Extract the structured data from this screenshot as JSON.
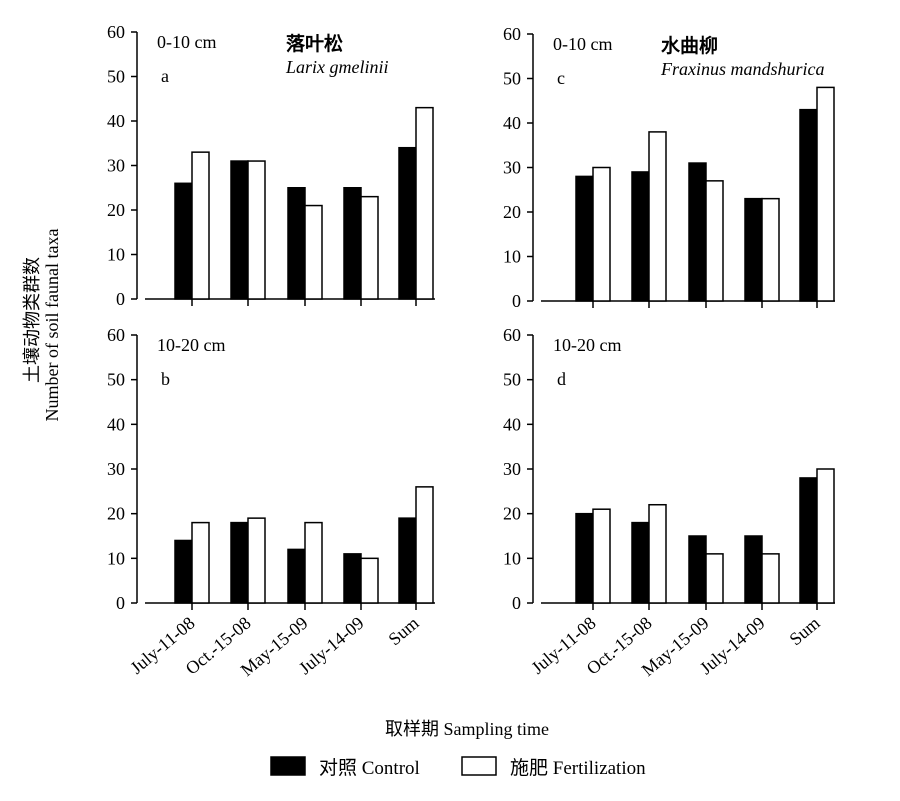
{
  "figure": {
    "y_title_cn": "土壤动物类群数",
    "y_title_en": "Number of soil faunal taxa",
    "x_title": "取样期 Sampling time",
    "legend": {
      "control": "对照 Control",
      "fertilization": "施肥 Fertilization"
    }
  },
  "colors": {
    "control": "#000000",
    "fertilization": "#ffffff",
    "stroke": "#000000"
  },
  "chart_data": [
    {
      "type": "bar",
      "panel_letter": "a",
      "depth": "0-10 cm",
      "title_cn": "落叶松",
      "title_sci": "Larix gmelinii",
      "categories": [
        "July-11-08",
        "Oct.-15-08",
        "May-15-09",
        "July-14-09",
        "Sum"
      ],
      "series": [
        {
          "name": "对照 Control",
          "values": [
            26,
            31,
            25,
            25,
            34
          ]
        },
        {
          "name": "施肥 Fertilization",
          "values": [
            33,
            31,
            21,
            23,
            43
          ]
        }
      ],
      "ylim": [
        0,
        60
      ],
      "yticks": [
        0,
        10,
        20,
        30,
        40,
        50,
        60
      ]
    },
    {
      "type": "bar",
      "panel_letter": "c",
      "depth": "0-10 cm",
      "title_cn": "水曲柳",
      "title_sci": "Fraxinus mandshurica",
      "categories": [
        "July-11-08",
        "Oct.-15-08",
        "May-15-09",
        "July-14-09",
        "Sum"
      ],
      "series": [
        {
          "name": "对照 Control",
          "values": [
            28,
            29,
            31,
            23,
            43
          ]
        },
        {
          "name": "施肥 Fertilization",
          "values": [
            30,
            38,
            27,
            23,
            48
          ]
        }
      ],
      "ylim": [
        0,
        60
      ],
      "yticks": [
        0,
        10,
        20,
        30,
        40,
        50,
        60
      ]
    },
    {
      "type": "bar",
      "panel_letter": "b",
      "depth": "10-20 cm",
      "categories": [
        "July-11-08",
        "Oct.-15-08",
        "May-15-09",
        "July-14-09",
        "Sum"
      ],
      "series": [
        {
          "name": "对照 Control",
          "values": [
            14,
            18,
            12,
            11,
            19
          ]
        },
        {
          "name": "施肥 Fertilization",
          "values": [
            18,
            19,
            18,
            10,
            26
          ]
        }
      ],
      "ylim": [
        0,
        60
      ],
      "yticks": [
        0,
        10,
        20,
        30,
        40,
        50,
        60
      ]
    },
    {
      "type": "bar",
      "panel_letter": "d",
      "depth": "10-20 cm",
      "categories": [
        "July-11-08",
        "Oct.-15-08",
        "May-15-09",
        "July-14-09",
        "Sum"
      ],
      "series": [
        {
          "name": "对照 Control",
          "values": [
            20,
            18,
            15,
            15,
            28
          ]
        },
        {
          "name": "施肥 Fertilization",
          "values": [
            21,
            22,
            11,
            11,
            30
          ]
        }
      ],
      "ylim": [
        0,
        60
      ],
      "yticks": [
        0,
        10,
        20,
        30,
        40,
        50,
        60
      ]
    }
  ]
}
